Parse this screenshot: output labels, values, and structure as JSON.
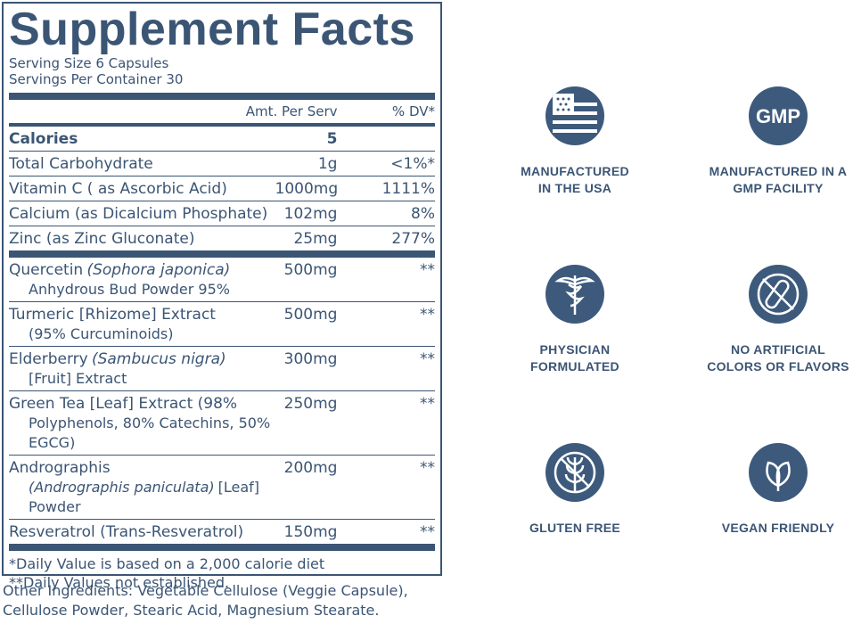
{
  "label": {
    "title": "Supplement Facts",
    "serving": [
      "Serving Size 6 Capsules",
      "Servings Per Container 30"
    ],
    "header": {
      "amount": "Amt. Per Serv",
      "dv": "% DV*"
    },
    "groups": [
      [
        {
          "lines": [
            [
              {
                "text": "Calories",
                "italic": false
              }
            ]
          ],
          "amount": "5",
          "dv": null,
          "bold": true
        },
        {
          "lines": [
            [
              {
                "text": "Total Carbohydrate",
                "italic": false
              }
            ]
          ],
          "amount": "1g",
          "dv": "<1%*"
        },
        {
          "lines": [
            [
              {
                "text": "Vitamin C ( as Ascorbic Acid)",
                "italic": false
              }
            ]
          ],
          "amount": "1000mg",
          "dv": "1111%"
        },
        {
          "lines": [
            [
              {
                "text": "Calcium (as Dicalcium Phosphate)",
                "italic": false
              }
            ]
          ],
          "amount": "102mg",
          "dv": "8%"
        },
        {
          "lines": [
            [
              {
                "text": "Zinc (as Zinc Gluconate)",
                "italic": false
              }
            ]
          ],
          "amount": "25mg",
          "dv": "277%"
        }
      ],
      [
        {
          "lines": [
            [
              {
                "text": "Quercetin",
                "italic": false
              },
              {
                "text": "(Sophora japonica)",
                "italic": true
              }
            ],
            [
              {
                "text": "Anhydrous Bud Powder 95%",
                "italic": false
              }
            ]
          ],
          "amount": "500mg",
          "dv": "**"
        },
        {
          "lines": [
            [
              {
                "text": "Turmeric [Rhizome] Extract",
                "italic": false
              }
            ],
            [
              {
                "text": "(95% Curcuminoids)",
                "italic": false
              }
            ]
          ],
          "amount": "500mg",
          "dv": "**"
        },
        {
          "lines": [
            [
              {
                "text": "Elderberry",
                "italic": false
              },
              {
                "text": "(Sambucus nigra)",
                "italic": true
              }
            ],
            [
              {
                "text": "[Fruit] Extract",
                "italic": false
              }
            ]
          ],
          "amount": "300mg",
          "dv": "**"
        },
        {
          "lines": [
            [
              {
                "text": "Green Tea [Leaf] Extract (98%",
                "italic": false
              }
            ],
            [
              {
                "text": "Polyphenols, 80% Catechins, 50% EGCG)",
                "italic": false
              }
            ]
          ],
          "amount": "250mg",
          "dv": "**"
        },
        {
          "lines": [
            [
              {
                "text": "Andrographis",
                "italic": false
              }
            ],
            [
              {
                "text": "(Andrographis paniculata)",
                "italic": true
              },
              {
                "text": "[Leaf] Powder",
                "italic": false
              }
            ]
          ],
          "amount": "200mg",
          "dv": "**"
        },
        {
          "lines": [
            [
              {
                "text": "Resveratrol (Trans-Resveratrol)",
                "italic": false
              }
            ]
          ],
          "amount": "150mg",
          "dv": "**"
        }
      ]
    ],
    "footnotes": [
      "*Daily Value is based on a 2,000 calorie diet",
      "**Daily Values not established."
    ],
    "other_ingredients": "Other Ingredients: Vegetable Cellulose (Veggie Capsule), Cellulose Powder, Stearic Acid, Magnesium Stearate."
  },
  "badges": [
    {
      "lines": [
        "MANUFACTURED",
        "IN THE USA"
      ]
    },
    {
      "icon_text": "GMP",
      "lines": [
        "MANUFACTURED IN A",
        "GMP FACILITY"
      ]
    },
    {
      "lines": [
        "PHYSICIAN",
        "FORMULATED"
      ]
    },
    {
      "lines": [
        "NO ARTIFICIAL",
        "COLORS OR FLAVORS"
      ]
    },
    {
      "lines": [
        "GLUTEN FREE"
      ]
    },
    {
      "lines": [
        "VEGAN FRIENDLY"
      ]
    }
  ]
}
